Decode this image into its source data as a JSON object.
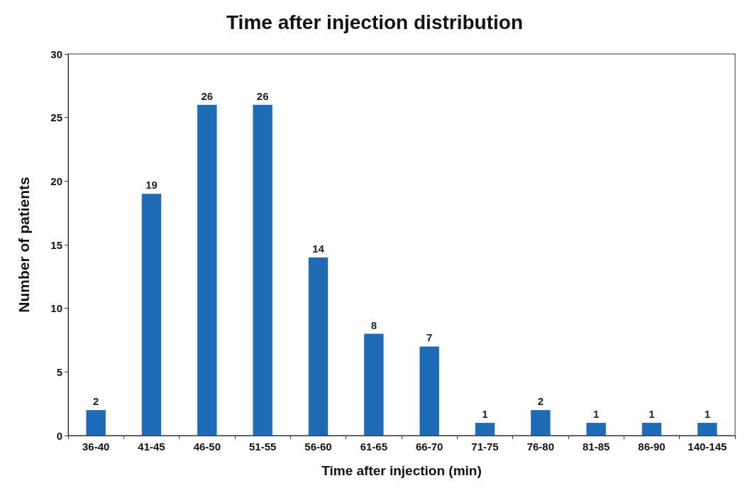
{
  "chart_data": {
    "type": "bar",
    "title": "Time after injection distribution",
    "xlabel": "Time after injection (min)",
    "ylabel": "Number of patients",
    "categories": [
      "36-40",
      "41-45",
      "46-50",
      "51-55",
      "56-60",
      "61-65",
      "66-70",
      "71-75",
      "76-80",
      "81-85",
      "86-90",
      "140-145"
    ],
    "values": [
      2,
      19,
      26,
      26,
      14,
      8,
      7,
      1,
      2,
      1,
      1,
      1
    ],
    "color": "#1f6bb5",
    "ylim": [
      0,
      30
    ],
    "yticks": [
      0,
      5,
      10,
      15,
      20,
      25,
      30
    ],
    "data_labels": true
  }
}
